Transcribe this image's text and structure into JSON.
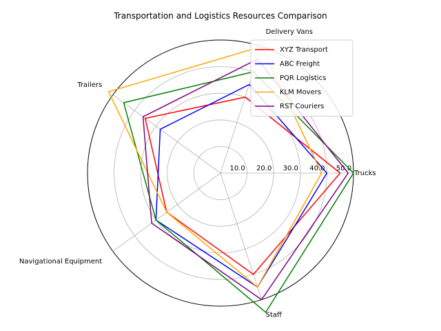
{
  "chart_data": {
    "type": "radar",
    "title": "Transportation and Logistics Resources Comparison",
    "axes": [
      "Trucks",
      "Delivery Vans",
      "Trailers",
      "Navigational Equipment",
      "Staff"
    ],
    "rlim": [
      0,
      50
    ],
    "rticks": [
      10.0,
      20.0,
      30.0,
      40.0,
      50.0
    ],
    "rtick_labels": [
      "10.0",
      "20.0",
      "30.0",
      "40.0",
      "50.0"
    ],
    "grid": true,
    "legend_position": "top-right",
    "series": [
      {
        "name": "XYZ Transport",
        "color": "#ff0000",
        "values": [
          45,
          30,
          35,
          25,
          40
        ]
      },
      {
        "name": "ABC Freight",
        "color": "#0000ff",
        "values": [
          40,
          35,
          28,
          30,
          45
        ]
      },
      {
        "name": "PQR Logistics",
        "color": "#008000",
        "values": [
          50,
          40,
          45,
          30,
          55
        ]
      },
      {
        "name": "KLM Movers",
        "color": "#ffa500",
        "values": [
          38,
          50,
          52,
          25,
          45
        ]
      },
      {
        "name": "RST Couriers",
        "color": "#800080",
        "values": [
          48,
          45,
          36,
          32,
          50
        ]
      }
    ]
  }
}
